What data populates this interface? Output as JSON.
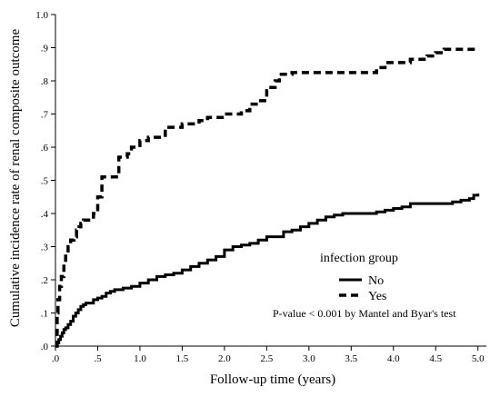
{
  "chart_data": {
    "type": "line",
    "title": "",
    "xlabel": "Follow-up time (years)",
    "ylabel": "Cumulative incidence rate of renal composite outcome",
    "xlim": [
      0,
      5.1
    ],
    "ylim": [
      0,
      1.0
    ],
    "x_ticks": [
      0,
      0.5,
      1.0,
      1.5,
      2.0,
      2.5,
      3.0,
      3.5,
      4.0,
      4.5,
      5.0
    ],
    "x_tick_labels": [
      ".0",
      ".5",
      "1.0",
      "1.5",
      "2.0",
      "2.5",
      "3.0",
      "3.5",
      "4.0",
      "4.5",
      "5.0"
    ],
    "y_ticks": [
      0,
      0.1,
      0.2,
      0.3,
      0.4,
      0.5,
      0.6,
      0.7,
      0.8,
      0.9,
      1.0
    ],
    "y_tick_labels": [
      ".0",
      ".1",
      ".2",
      ".3",
      ".4",
      ".5",
      ".6",
      ".7",
      ".8",
      ".9",
      "1.0"
    ],
    "grid": false,
    "legend": {
      "title": "infection group",
      "position": "lower-right",
      "entries": [
        "No",
        "Yes"
      ]
    },
    "annotation": "P-value < 0.001 by Mantel and Byar's test",
    "series": [
      {
        "name": "No",
        "style": "solid",
        "color": "#000000",
        "x": [
          0,
          0.02,
          0.04,
          0.06,
          0.08,
          0.1,
          0.12,
          0.15,
          0.18,
          0.21,
          0.24,
          0.27,
          0.3,
          0.33,
          0.36,
          0.4,
          0.45,
          0.5,
          0.55,
          0.6,
          0.65,
          0.7,
          0.75,
          0.8,
          0.9,
          1.0,
          1.05,
          1.1,
          1.2,
          1.3,
          1.4,
          1.5,
          1.6,
          1.7,
          1.8,
          1.9,
          2.0,
          2.1,
          2.2,
          2.3,
          2.4,
          2.5,
          2.6,
          2.7,
          2.8,
          2.9,
          3.0,
          3.1,
          3.2,
          3.3,
          3.4,
          3.5,
          3.6,
          3.7,
          3.8,
          3.9,
          4.0,
          4.1,
          4.2,
          4.3,
          4.4,
          4.5,
          4.6,
          4.7,
          4.8,
          4.9,
          4.95,
          5.0
        ],
        "y": [
          0.0,
          0.01,
          0.02,
          0.03,
          0.04,
          0.05,
          0.055,
          0.065,
          0.075,
          0.09,
          0.1,
          0.11,
          0.12,
          0.125,
          0.13,
          0.13,
          0.14,
          0.145,
          0.15,
          0.16,
          0.165,
          0.17,
          0.17,
          0.175,
          0.18,
          0.19,
          0.19,
          0.2,
          0.21,
          0.215,
          0.22,
          0.23,
          0.24,
          0.25,
          0.26,
          0.27,
          0.29,
          0.3,
          0.305,
          0.31,
          0.32,
          0.33,
          0.33,
          0.345,
          0.35,
          0.36,
          0.37,
          0.38,
          0.39,
          0.395,
          0.4,
          0.4,
          0.4,
          0.4,
          0.405,
          0.41,
          0.415,
          0.42,
          0.43,
          0.43,
          0.43,
          0.43,
          0.43,
          0.435,
          0.44,
          0.445,
          0.455,
          0.46
        ]
      },
      {
        "name": "Yes",
        "style": "dashed",
        "color": "#000000",
        "x": [
          0,
          0.02,
          0.03,
          0.05,
          0.07,
          0.1,
          0.12,
          0.15,
          0.18,
          0.22,
          0.25,
          0.28,
          0.3,
          0.33,
          0.36,
          0.4,
          0.45,
          0.5,
          0.55,
          0.6,
          0.65,
          0.7,
          0.75,
          0.8,
          0.85,
          0.9,
          0.95,
          1.0,
          1.1,
          1.2,
          1.3,
          1.4,
          1.5,
          1.6,
          1.7,
          1.8,
          1.9,
          2.0,
          2.1,
          2.2,
          2.3,
          2.4,
          2.5,
          2.55,
          2.6,
          2.65,
          2.7,
          2.8,
          3.0,
          3.2,
          3.4,
          3.6,
          3.7,
          3.8,
          3.9,
          4.0,
          4.2,
          4.4,
          4.5,
          4.6,
          4.8,
          5.0
        ],
        "y": [
          0.0,
          0.1,
          0.14,
          0.18,
          0.21,
          0.25,
          0.28,
          0.3,
          0.32,
          0.33,
          0.35,
          0.36,
          0.37,
          0.38,
          0.38,
          0.38,
          0.4,
          0.45,
          0.51,
          0.51,
          0.51,
          0.51,
          0.57,
          0.57,
          0.58,
          0.6,
          0.6,
          0.62,
          0.63,
          0.63,
          0.66,
          0.66,
          0.67,
          0.67,
          0.68,
          0.69,
          0.69,
          0.7,
          0.7,
          0.71,
          0.73,
          0.74,
          0.77,
          0.78,
          0.8,
          0.82,
          0.82,
          0.825,
          0.825,
          0.825,
          0.825,
          0.825,
          0.825,
          0.84,
          0.855,
          0.855,
          0.865,
          0.875,
          0.885,
          0.895,
          0.895,
          0.895
        ]
      }
    ]
  }
}
